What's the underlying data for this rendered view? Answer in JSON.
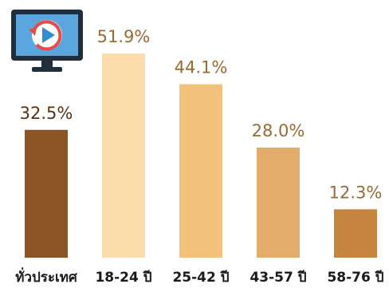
{
  "chart_data": {
    "type": "bar",
    "categories": [
      "ทั่วประเทศ",
      "18-24 ปี",
      "25-42 ปี",
      "43-57 ปี",
      "58-76 ปี"
    ],
    "values": [
      32.5,
      51.9,
      44.1,
      28.0,
      12.3
    ],
    "value_labels": [
      "32.5%",
      "51.9%",
      "44.1%",
      "28.0%",
      "12.3%"
    ],
    "bar_colors": [
      "#8B5523",
      "#FCDCAA",
      "#F2C27D",
      "#E3AC6A",
      "#C6853E"
    ],
    "label_colors": [
      "#5a3212",
      "#9a6a34",
      "#9a6a34",
      "#9a6a34",
      "#9a6a34"
    ],
    "ylim": [
      0,
      60
    ],
    "grid": false,
    "legend": "none"
  },
  "icon": {
    "name": "tv-replay-icon",
    "frame_color": "#1f2d3d",
    "screen_color": "#5ba6dc",
    "replay_color": "#e84a4a",
    "play_color": "#2f8fd0"
  }
}
